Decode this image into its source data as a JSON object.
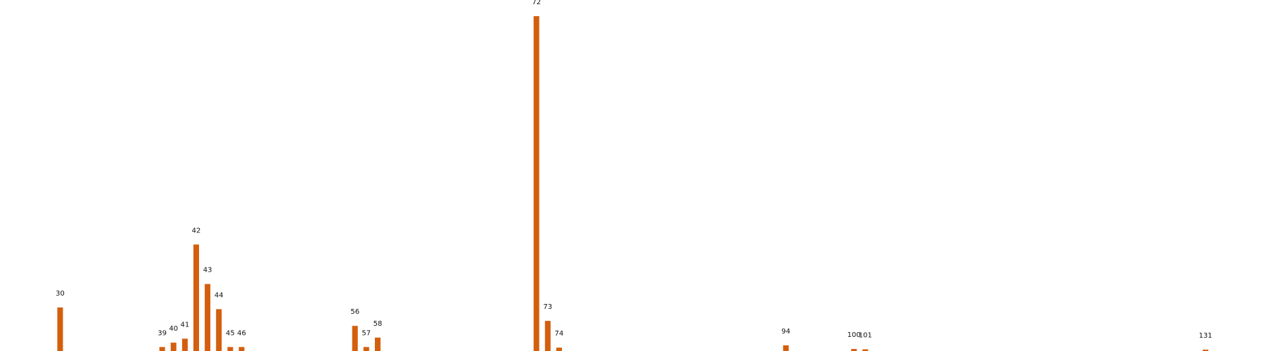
{
  "chart_data": {
    "type": "bar",
    "title": "",
    "xlabel": "",
    "ylabel": "",
    "x_range": [
      25,
      135
    ],
    "bar_color": "#d35f0e",
    "axes_visible": false,
    "grid": false,
    "bars": [
      {
        "label": "30",
        "x": 30,
        "value": 0.13
      },
      {
        "label": "39",
        "x": 39,
        "value": 0.012
      },
      {
        "label": "40",
        "x": 40,
        "value": 0.025
      },
      {
        "label": "41",
        "x": 41,
        "value": 0.037
      },
      {
        "label": "42",
        "x": 42,
        "value": 0.318
      },
      {
        "label": "43",
        "x": 43,
        "value": 0.2
      },
      {
        "label": "44",
        "x": 44,
        "value": 0.125
      },
      {
        "label": "45",
        "x": 45,
        "value": 0.012
      },
      {
        "label": "46",
        "x": 46,
        "value": 0.012
      },
      {
        "label": "56",
        "x": 56,
        "value": 0.075
      },
      {
        "label": "57",
        "x": 57,
        "value": 0.012
      },
      {
        "label": "58",
        "x": 58,
        "value": 0.04
      },
      {
        "label": "72",
        "x": 72,
        "value": 1.0
      },
      {
        "label": "73",
        "x": 73,
        "value": 0.09
      },
      {
        "label": "74",
        "x": 74,
        "value": 0.01
      },
      {
        "label": "94",
        "x": 94,
        "value": 0.017
      },
      {
        "label": "100",
        "x": 100,
        "value": 0.006
      },
      {
        "label": "101",
        "x": 101,
        "value": 0.005
      },
      {
        "label": "131",
        "x": 131,
        "value": 0.004
      }
    ]
  }
}
